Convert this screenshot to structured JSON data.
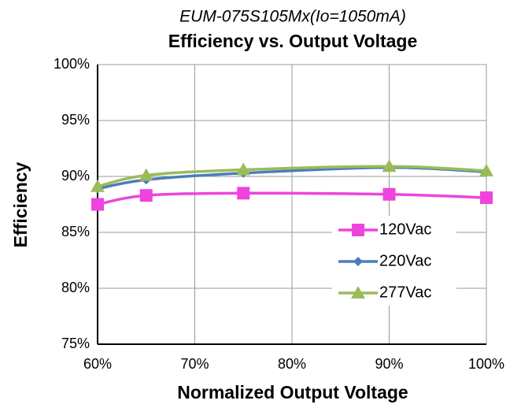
{
  "chart_data": {
    "type": "line",
    "subtitle": "EUM-075S105Mx(Io=1050mA)",
    "title": "Efficiency vs. Output Voltage",
    "x_label": "Normalized Output Voltage",
    "y_label": "Efficiency",
    "x": [
      60,
      65,
      75,
      90,
      100
    ],
    "series": [
      {
        "name": "120Vac",
        "color": "#ee44dd",
        "marker": "square",
        "values": [
          87.5,
          88.3,
          88.5,
          88.4,
          88.1
        ]
      },
      {
        "name": "220Vac",
        "color": "#4a7ebb",
        "marker": "diamond",
        "values": [
          88.9,
          89.7,
          90.3,
          90.8,
          90.4
        ]
      },
      {
        "name": "277Vac",
        "color": "#9bbb59",
        "marker": "triangle",
        "values": [
          89.1,
          90.1,
          90.6,
          90.9,
          90.5
        ]
      }
    ],
    "xlim": [
      60,
      100
    ],
    "xticks": [
      {
        "value": 60,
        "label": "60%"
      },
      {
        "value": 70,
        "label": "70%"
      },
      {
        "value": 80,
        "label": "80%"
      },
      {
        "value": 90,
        "label": "90%"
      },
      {
        "value": 100,
        "label": "100%"
      }
    ],
    "ylim": [
      75,
      100
    ],
    "yticks": [
      {
        "value": 75,
        "label": "75%"
      },
      {
        "value": 80,
        "label": "80%"
      },
      {
        "value": 85,
        "label": "85%"
      },
      {
        "value": 90,
        "label": "90%"
      },
      {
        "value": 95,
        "label": "95%"
      },
      {
        "value": 100,
        "label": "100%"
      }
    ],
    "grid": true,
    "legend": "right"
  }
}
